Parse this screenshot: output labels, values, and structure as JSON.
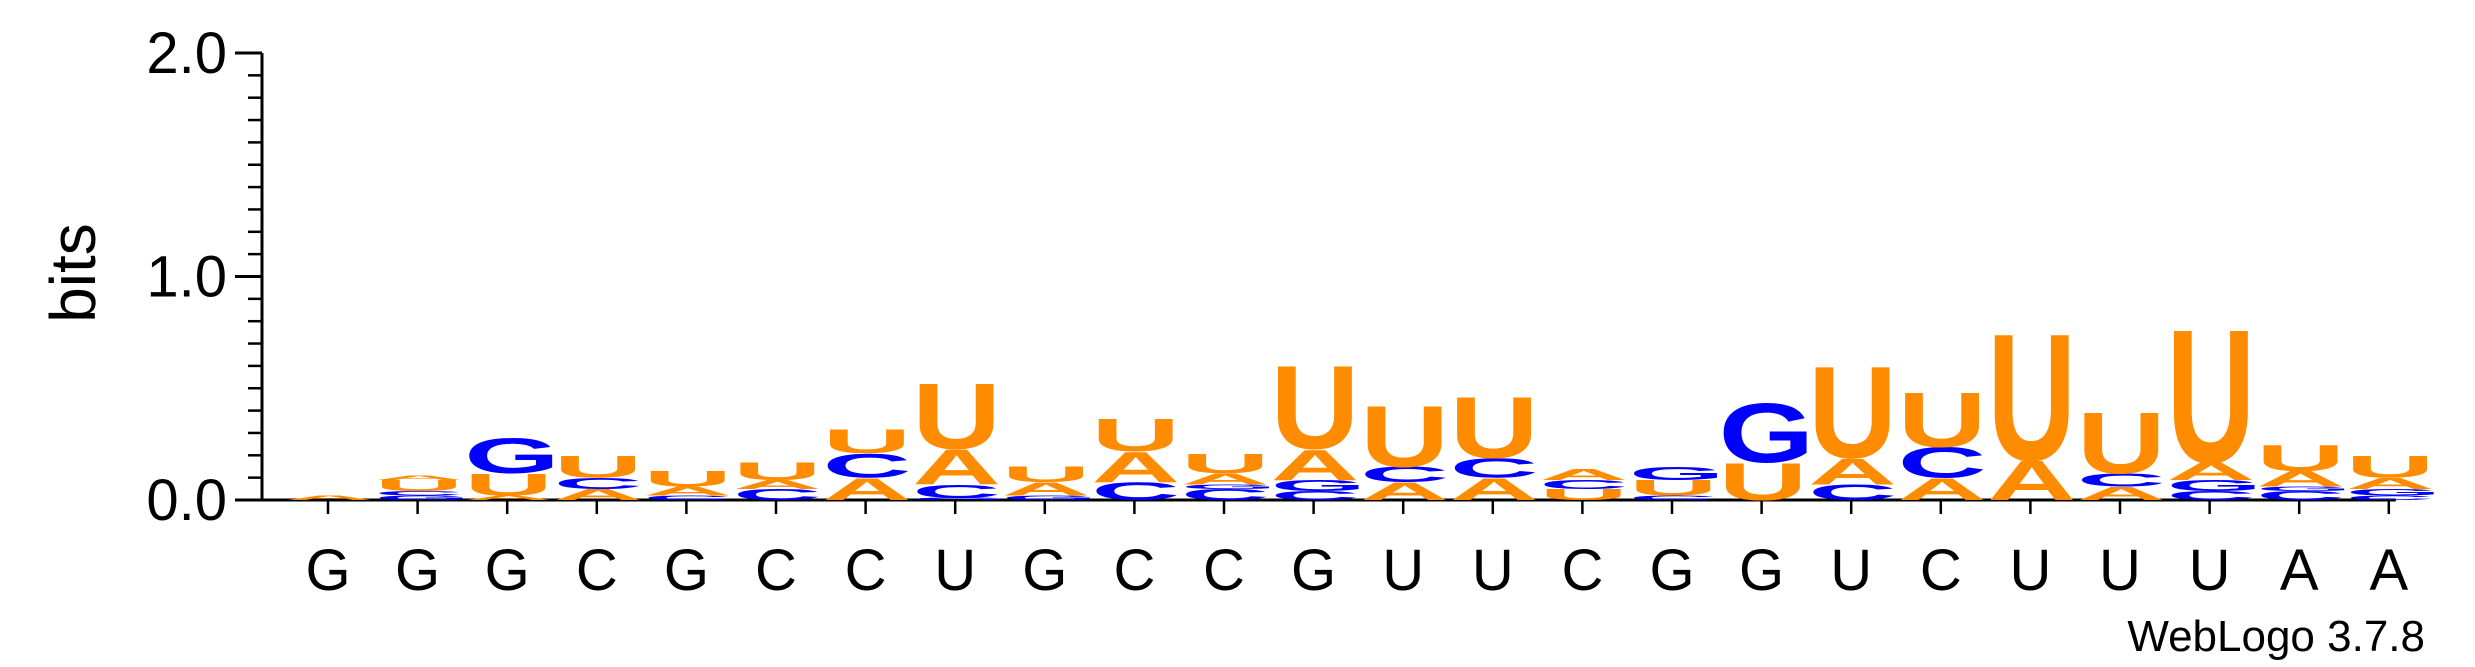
{
  "chart_data": {
    "type": "sequence-logo",
    "title": "",
    "ylabel": "bits",
    "ylim": [
      0,
      2.0
    ],
    "yticks": [
      "0.0",
      "1.0",
      "2.0"
    ],
    "x_tick_labels": [
      "G",
      "G",
      "G",
      "C",
      "G",
      "C",
      "C",
      "U",
      "G",
      "C",
      "C",
      "G",
      "U",
      "U",
      "C",
      "G",
      "G",
      "U",
      "C",
      "U",
      "U",
      "U",
      "A",
      "A"
    ],
    "colors": {
      "A": "#ff8c00",
      "U": "#ff8c00",
      "C": "#0000ff",
      "G": "#0000ff"
    },
    "stacks": [
      [
        [
          "A",
          0.02
        ]
      ],
      [
        [
          "G",
          0.02
        ],
        [
          "C",
          0.02
        ],
        [
          "U",
          0.05
        ],
        [
          "A",
          0.02
        ]
      ],
      [
        [
          "A",
          0.02
        ],
        [
          "U",
          0.1
        ],
        [
          "G",
          0.16
        ]
      ],
      [
        [
          "A",
          0.05
        ],
        [
          "C",
          0.05
        ],
        [
          "U",
          0.1
        ]
      ],
      [
        [
          "C",
          0.02
        ],
        [
          "A",
          0.04
        ],
        [
          "U",
          0.07
        ]
      ],
      [
        [
          "C",
          0.05
        ],
        [
          "A",
          0.04
        ],
        [
          "U",
          0.08
        ]
      ],
      [
        [
          "A",
          0.1
        ],
        [
          "C",
          0.11
        ],
        [
          "U",
          0.11
        ]
      ],
      [
        [
          "G",
          0.01
        ],
        [
          "C",
          0.06
        ],
        [
          "A",
          0.16
        ],
        [
          "U",
          0.3
        ]
      ],
      [
        [
          "G",
          0.02
        ],
        [
          "A",
          0.06
        ],
        [
          "U",
          0.07
        ]
      ],
      [
        [
          "C",
          0.08
        ],
        [
          "A",
          0.14
        ],
        [
          "U",
          0.15
        ]
      ],
      [
        [
          "C",
          0.05
        ],
        [
          "G",
          0.02
        ],
        [
          "A",
          0.05
        ],
        [
          "U",
          0.09
        ]
      ],
      [
        [
          "C",
          0.04
        ],
        [
          "G",
          0.05
        ],
        [
          "A",
          0.14
        ],
        [
          "U",
          0.38
        ]
      ],
      [
        [
          "A",
          0.08
        ],
        [
          "C",
          0.07
        ],
        [
          "U",
          0.28
        ]
      ],
      [
        [
          "A",
          0.1
        ],
        [
          "C",
          0.09
        ],
        [
          "U",
          0.28
        ]
      ],
      [
        [
          "U",
          0.05
        ],
        [
          "C",
          0.04
        ],
        [
          "A",
          0.05
        ]
      ],
      [
        [
          "C",
          0.02
        ],
        [
          "U",
          0.07
        ],
        [
          "G",
          0.06
        ]
      ],
      [
        [
          "U",
          0.17
        ],
        [
          "G",
          0.27
        ]
      ],
      [
        [
          "C",
          0.07
        ],
        [
          "A",
          0.12
        ],
        [
          "U",
          0.42
        ]
      ],
      [
        [
          "A",
          0.1
        ],
        [
          "C",
          0.14
        ],
        [
          "U",
          0.25
        ]
      ],
      [
        [
          "A",
          0.18
        ],
        [
          "U",
          0.58
        ]
      ],
      [
        [
          "A",
          0.06
        ],
        [
          "C",
          0.06
        ],
        [
          "U",
          0.28
        ]
      ],
      [
        [
          "C",
          0.04
        ],
        [
          "G",
          0.05
        ],
        [
          "A",
          0.08
        ],
        [
          "U",
          0.61
        ]
      ],
      [
        [
          "C",
          0.04
        ],
        [
          "G",
          0.02
        ],
        [
          "A",
          0.07
        ],
        [
          "U",
          0.12
        ]
      ],
      [
        [
          "C",
          0.02
        ],
        [
          "G",
          0.03
        ],
        [
          "A",
          0.05
        ],
        [
          "U",
          0.1
        ]
      ]
    ]
  },
  "footer": {
    "credit": "WebLogo 3.7.8"
  }
}
